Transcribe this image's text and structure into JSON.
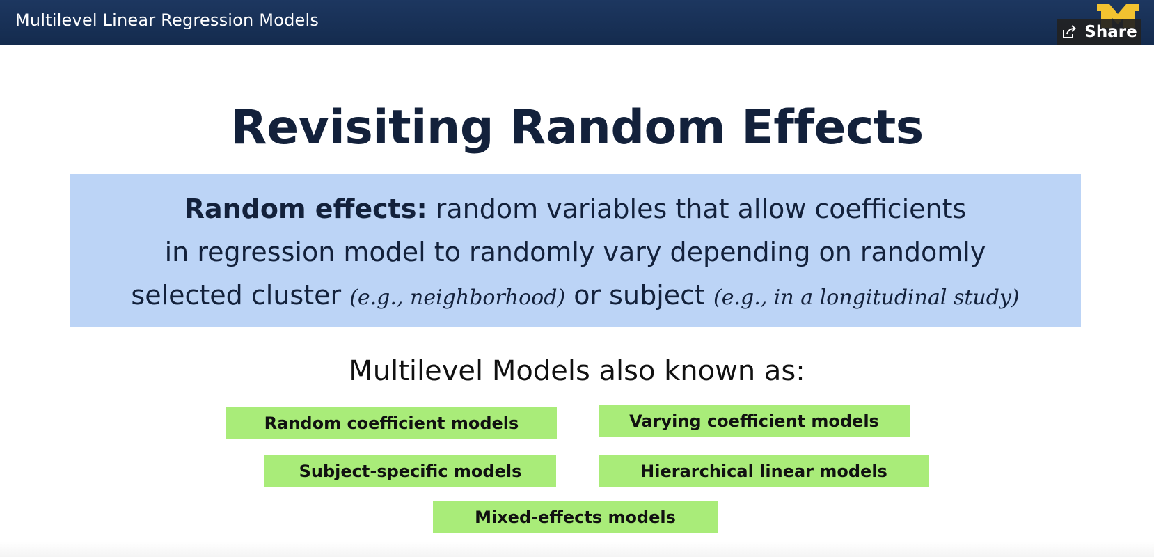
{
  "header": {
    "title": "Multilevel Linear Regression Models",
    "share_label": "Share",
    "share_icon": "share-icon",
    "logo_icon": "block-m-logo",
    "logo_text": "M",
    "colors": {
      "bar": "#1b335b",
      "logo": "#f2c230"
    }
  },
  "slide": {
    "title": "Revisiting Random Effects",
    "definition": {
      "term": "Random effects:",
      "line1_rest": " random variables that allow coefficients",
      "line2": "in regression model to randomly vary depending on randomly",
      "line3_a": "selected cluster ",
      "line3_example1": "(e.g., neighborhood)",
      "line3_b": " or subject ",
      "line3_example2": "(e.g., in a longitudinal study)"
    },
    "aka_heading": "Multilevel Models also known as:",
    "model_names": [
      "Random coefficient models",
      "Varying coefficient models",
      "Subject-specific models",
      "Hierarchical linear models",
      "Mixed-effects models"
    ],
    "colors": {
      "definition_box": "#bcd4f6",
      "tags": "#a9ec79",
      "title": "#13213b"
    }
  }
}
